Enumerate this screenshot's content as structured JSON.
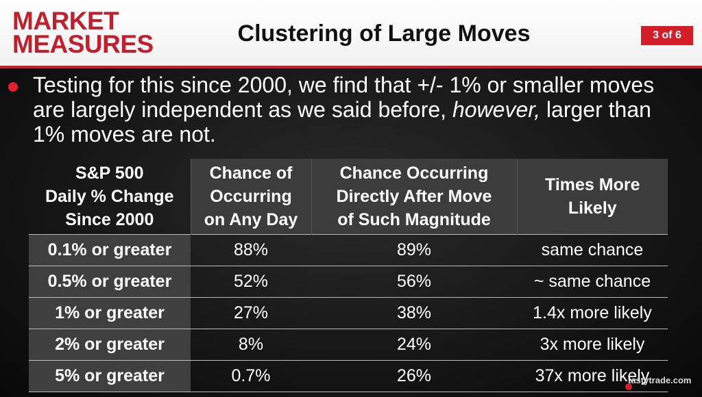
{
  "header": {
    "logo_line1": "MARKET",
    "logo_line2": "MEASURES",
    "title": "Clustering of Large Moves",
    "page_indicator": "3 of 6"
  },
  "bullet": {
    "text_before": "Testing for this since 2000, we find that +/- 1% or smaller moves are largely independent as we said before, ",
    "text_italic": "however,",
    "text_after": " larger than 1% moves are not."
  },
  "table": {
    "headers": [
      [
        "S&P 500",
        "Daily % Change",
        "Since 2000"
      ],
      [
        "Chance of",
        "Occurring",
        "on Any Day"
      ],
      [
        "Chance Occurring",
        "Directly After Move",
        "of Such Magnitude"
      ],
      [
        "Times More",
        "Likely"
      ]
    ],
    "rows": [
      [
        "0.1% or greater",
        "88%",
        "89%",
        "same chance"
      ],
      [
        "0.5% or greater",
        "52%",
        "56%",
        "~ same chance"
      ],
      [
        "1% or greater",
        "27%",
        "38%",
        "1.4x more likely"
      ],
      [
        "2% or greater",
        "8%",
        "24%",
        "3x more likely"
      ],
      [
        "5% or greater",
        "0.7%",
        "26%",
        "37x more likely"
      ]
    ]
  },
  "watermark": "tastytrade.com",
  "colors": {
    "brand_red": "#c0202c",
    "header_bg": "#ffffff",
    "content_bg": "#1a1a1a",
    "row_label_bg": "#3f3f3f"
  }
}
